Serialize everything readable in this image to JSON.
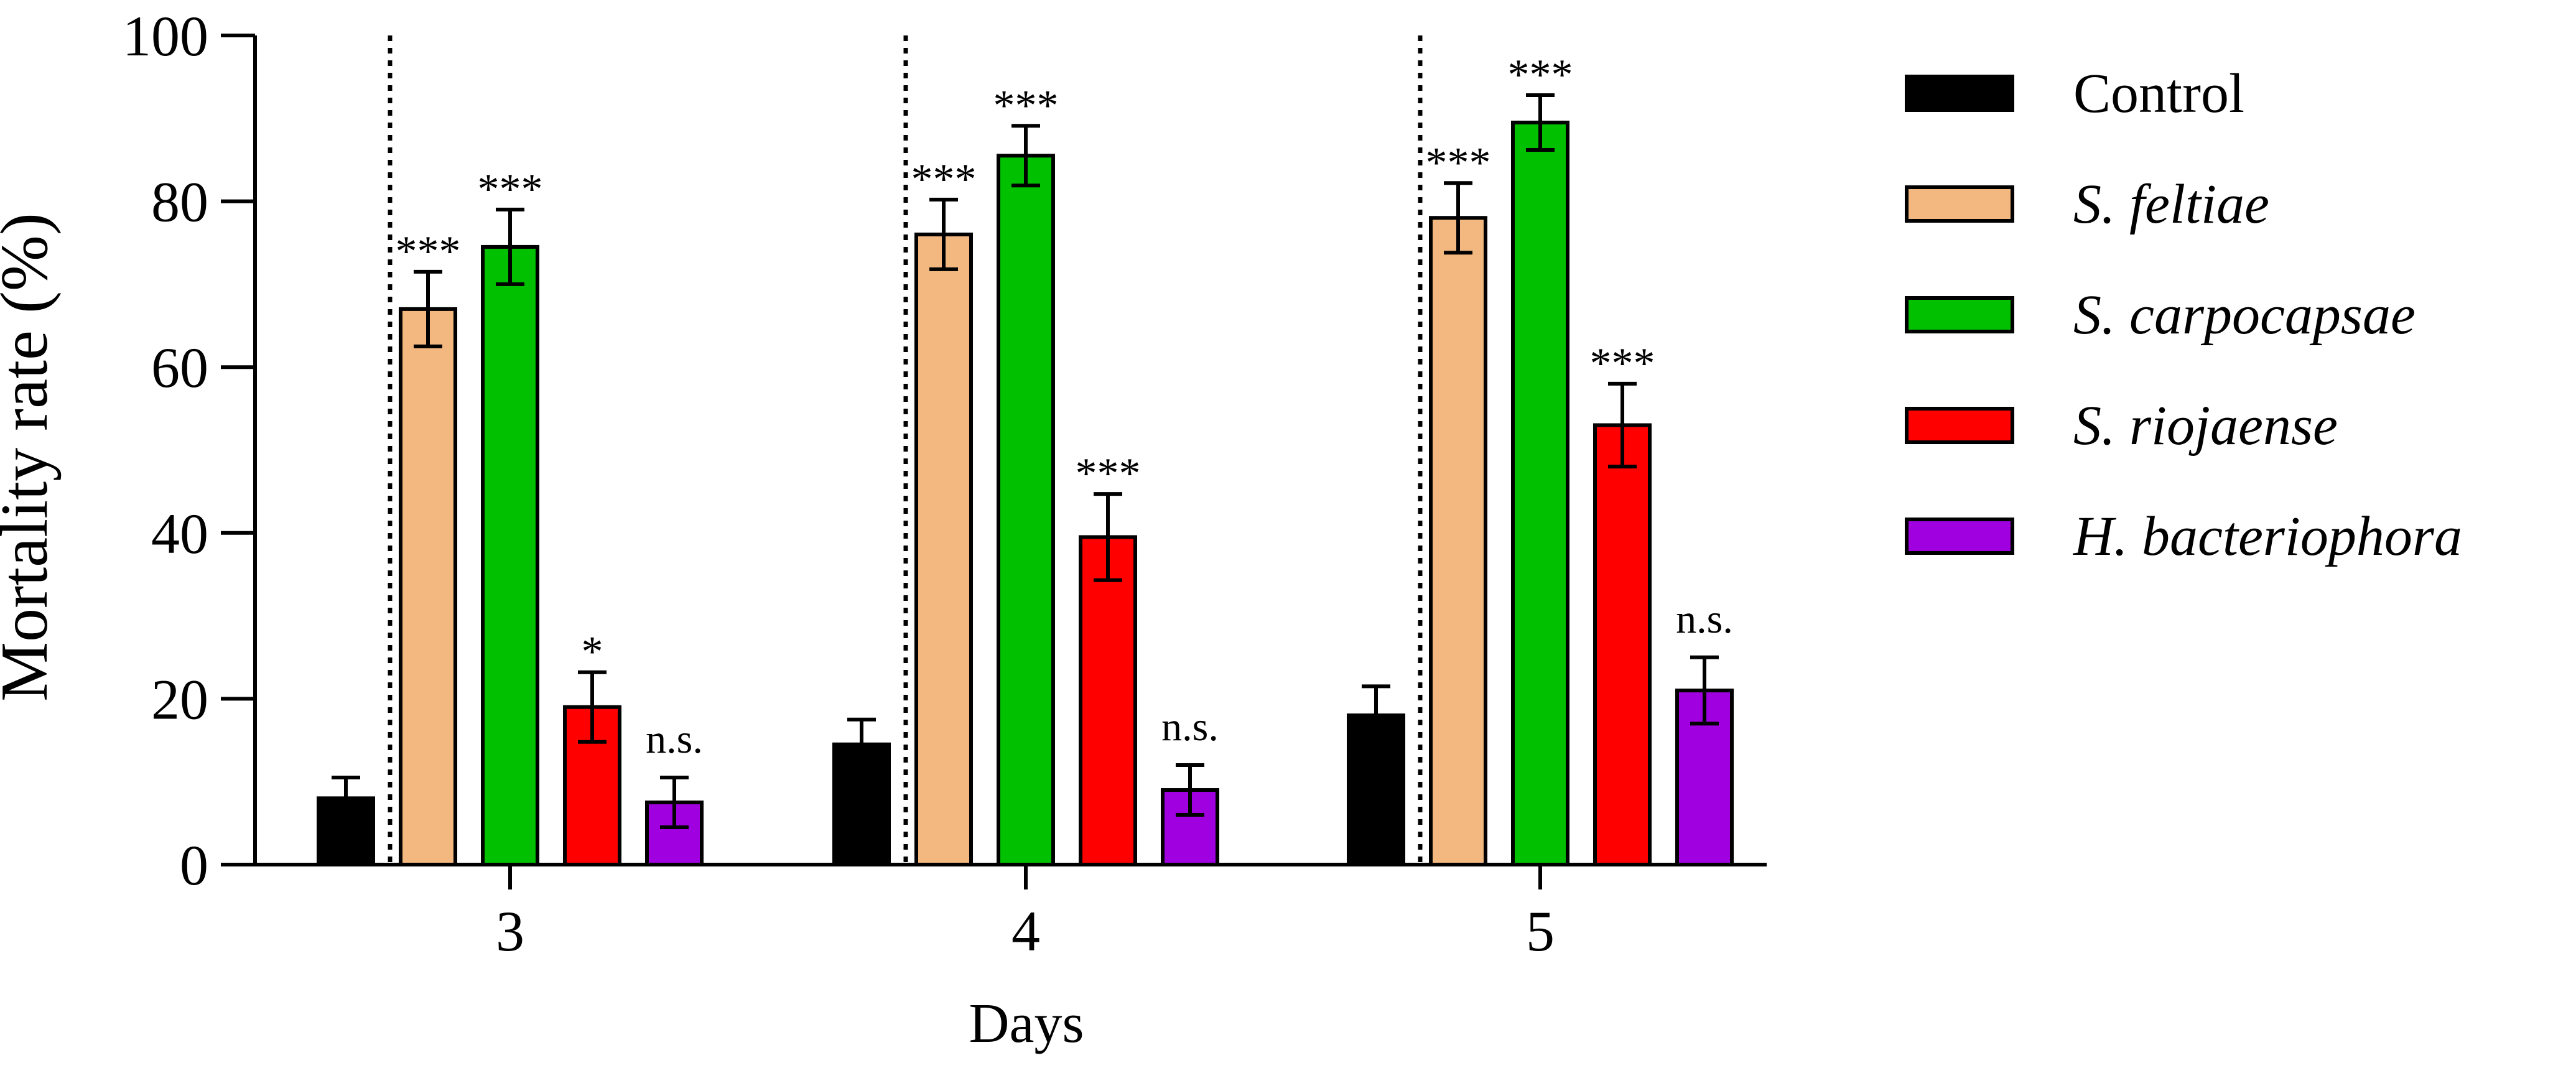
{
  "chart_data": {
    "type": "bar",
    "title": "",
    "xlabel": "Days",
    "ylabel": "Mortality rate (%)",
    "ylim": [
      0,
      100
    ],
    "yticks": [
      0,
      20,
      40,
      60,
      80,
      100
    ],
    "categories": [
      "3",
      "4",
      "5"
    ],
    "legend_position": "right",
    "series": [
      {
        "name": "Control",
        "color": "#000000",
        "italic": false,
        "values": [
          8,
          14.5,
          18
        ],
        "errors": [
          2.5,
          3,
          3.5
        ],
        "annotations": [
          "",
          "",
          ""
        ]
      },
      {
        "name": "S. feltiae",
        "color": "#F2B880",
        "italic": true,
        "values": [
          67,
          76,
          78
        ],
        "errors": [
          4.5,
          4.2,
          4.2
        ],
        "annotations": [
          "***",
          "***",
          "***"
        ]
      },
      {
        "name": "S. carpocapsae",
        "color": "#00C000",
        "italic": true,
        "values": [
          74.5,
          85.5,
          89.5
        ],
        "errors": [
          4.5,
          3.6,
          3.3
        ],
        "annotations": [
          "***",
          "***",
          "***"
        ]
      },
      {
        "name": "S. riojaense",
        "color": "#FF0000",
        "italic": true,
        "values": [
          19,
          39.5,
          53
        ],
        "errors": [
          4.2,
          5.2,
          5
        ],
        "annotations": [
          "*",
          "***",
          "***"
        ]
      },
      {
        "name": "H. bacteriophora",
        "color": "#A000E0",
        "italic": true,
        "values": [
          7.5,
          9,
          21
        ],
        "errors": [
          3,
          3,
          4
        ],
        "annotations": [
          "n.s.",
          "n.s.",
          "n.s."
        ]
      }
    ]
  }
}
